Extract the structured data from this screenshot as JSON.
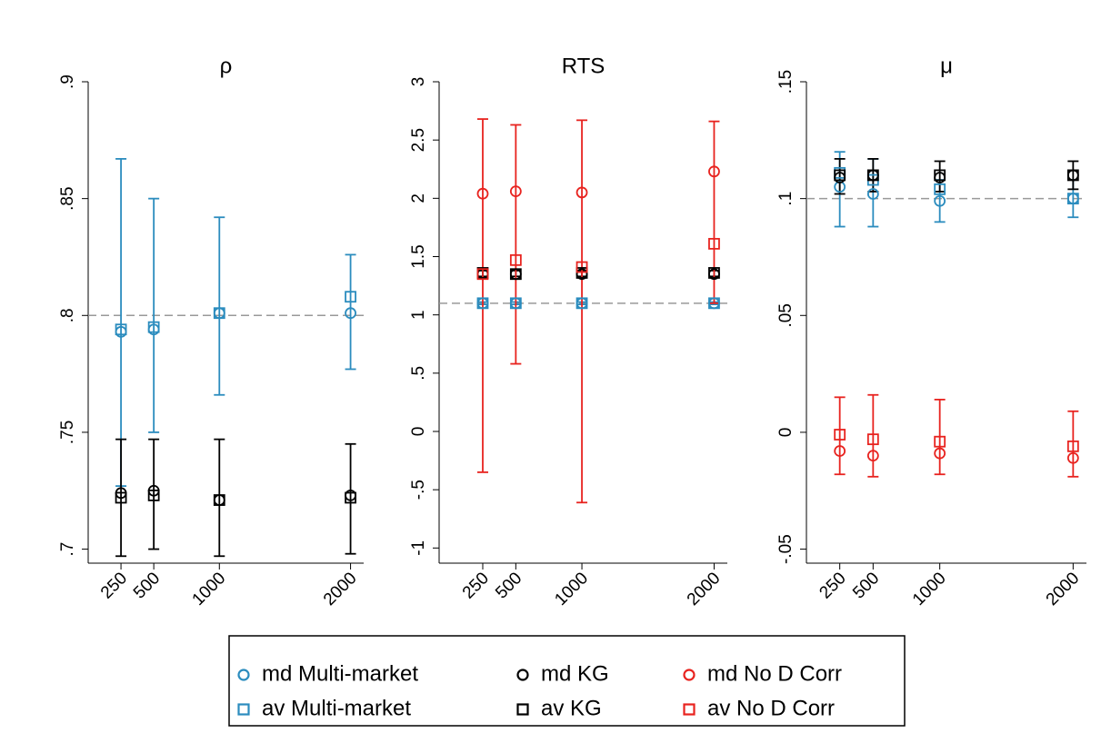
{
  "chart_data": [
    {
      "type": "errorbar",
      "title": "ρ",
      "x": [
        250,
        500,
        1000,
        2000
      ],
      "xlim": [
        0,
        2100
      ],
      "xticks": [
        250,
        500,
        1000,
        2000
      ],
      "ylim": [
        0.694,
        0.9
      ],
      "yticks": [
        {
          "value": 0.7,
          "label": ".7"
        },
        {
          "value": 0.75,
          "label": ".75"
        },
        {
          "value": 0.8,
          "label": ".8"
        },
        {
          "value": 0.85,
          "label": ".85"
        },
        {
          "value": 0.9,
          "label": ".9"
        }
      ],
      "reference": 0.8,
      "series": [
        {
          "name": "md Multi-market",
          "color": "#2b8cbe",
          "marker": "circle",
          "values": [
            0.793,
            0.794,
            0.801,
            0.801
          ]
        },
        {
          "name": "av Multi-market",
          "color": "#2b8cbe",
          "marker": "square",
          "values": [
            0.794,
            0.795,
            0.801,
            0.808
          ],
          "low": [
            0.727,
            0.75,
            0.766,
            0.777
          ],
          "high": [
            0.867,
            0.85,
            0.842,
            0.826
          ]
        },
        {
          "name": "md KG",
          "color": "#000000",
          "marker": "circle",
          "values": [
            0.724,
            0.725,
            0.721,
            0.723
          ]
        },
        {
          "name": "av KG",
          "color": "#000000",
          "marker": "square",
          "values": [
            0.722,
            0.723,
            0.721,
            0.722
          ],
          "low": [
            0.697,
            0.7,
            0.697,
            0.698
          ],
          "high": [
            0.747,
            0.747,
            0.747,
            0.745
          ]
        },
        {
          "name": "md No D Corr",
          "color": "#e8231f",
          "marker": "circle",
          "values": [
            null,
            null,
            null,
            null
          ]
        },
        {
          "name": "av No D Corr",
          "color": "#e8231f",
          "marker": "square",
          "values": [
            null,
            null,
            null,
            null
          ]
        }
      ]
    },
    {
      "type": "errorbar",
      "title": "RTS",
      "x": [
        250,
        500,
        1000,
        2000
      ],
      "xlim": [
        -80,
        2100
      ],
      "xticks": [
        250,
        500,
        1000,
        2000
      ],
      "ylim": [
        -1.13,
        3
      ],
      "yticks": [
        -1,
        {
          "value": -0.5,
          "label": "-.5"
        },
        0,
        {
          "value": 0.5,
          "label": ".5"
        },
        1,
        1.5,
        2,
        2.5,
        3
      ],
      "reference": 1.1,
      "series": [
        {
          "name": "md Multi-market",
          "color": "#2b8cbe",
          "marker": "circle",
          "values": [
            1.1,
            1.1,
            1.1,
            1.1
          ]
        },
        {
          "name": "av Multi-market",
          "color": "#2b8cbe",
          "marker": "square",
          "values": [
            1.1,
            1.1,
            1.1,
            1.1
          ],
          "low": [
            1.09,
            1.09,
            1.09,
            1.09
          ],
          "high": [
            1.11,
            1.11,
            1.11,
            1.11
          ]
        },
        {
          "name": "md KG",
          "color": "#000000",
          "marker": "circle",
          "values": [
            1.35,
            1.35,
            1.35,
            1.35
          ]
        },
        {
          "name": "av KG",
          "color": "#000000",
          "marker": "square",
          "values": [
            1.36,
            1.35,
            1.36,
            1.36
          ],
          "low": [
            1.33,
            1.33,
            1.33,
            1.33
          ],
          "high": [
            1.38,
            1.38,
            1.38,
            1.38
          ]
        },
        {
          "name": "md No D Corr",
          "color": "#e8231f",
          "marker": "circle",
          "values": [
            2.04,
            2.06,
            2.05,
            2.23
          ]
        },
        {
          "name": "av No D Corr",
          "color": "#e8231f",
          "marker": "square",
          "values": [
            1.35,
            1.47,
            1.41,
            1.61
          ],
          "low": [
            -0.35,
            0.58,
            -0.61,
            1.1
          ],
          "high": [
            2.68,
            2.63,
            2.67,
            2.66
          ]
        }
      ]
    },
    {
      "type": "errorbar",
      "title": "μ",
      "x": [
        250,
        500,
        1000,
        2000
      ],
      "xlim": [
        0,
        2100
      ],
      "xticks": [
        250,
        500,
        1000,
        2000
      ],
      "ylim": [
        -0.056,
        0.15
      ],
      "yticks": [
        {
          "value": -0.05,
          "label": "-.05"
        },
        0,
        {
          "value": 0.05,
          "label": ".05"
        },
        {
          "value": 0.1,
          "label": ".1"
        },
        {
          "value": 0.15,
          "label": ".15"
        }
      ],
      "reference": 0.1,
      "series": [
        {
          "name": "md Multi-market",
          "color": "#2b8cbe",
          "marker": "circle",
          "values": [
            0.105,
            0.102,
            0.099,
            0.1
          ]
        },
        {
          "name": "av Multi-market",
          "color": "#2b8cbe",
          "marker": "square",
          "values": [
            0.111,
            0.108,
            0.104,
            0.1
          ],
          "low": [
            0.088,
            0.088,
            0.09,
            0.092
          ],
          "high": [
            0.12,
            0.117,
            0.108,
            0.108
          ]
        },
        {
          "name": "md KG",
          "color": "#000000",
          "marker": "circle",
          "values": [
            0.109,
            0.11,
            0.109,
            0.11
          ]
        },
        {
          "name": "av KG",
          "color": "#000000",
          "marker": "square",
          "values": [
            0.11,
            0.11,
            0.11,
            0.11
          ],
          "low": [
            0.102,
            0.103,
            0.103,
            0.104
          ],
          "high": [
            0.117,
            0.117,
            0.116,
            0.116
          ]
        },
        {
          "name": "md No D Corr",
          "color": "#e8231f",
          "marker": "circle",
          "values": [
            -0.008,
            -0.01,
            -0.009,
            -0.011
          ]
        },
        {
          "name": "av No D Corr",
          "color": "#e8231f",
          "marker": "square",
          "values": [
            -0.001,
            -0.003,
            -0.004,
            -0.006
          ],
          "low": [
            -0.018,
            -0.019,
            -0.018,
            -0.019
          ],
          "high": [
            0.015,
            0.016,
            0.014,
            0.009
          ]
        }
      ]
    }
  ]
}
